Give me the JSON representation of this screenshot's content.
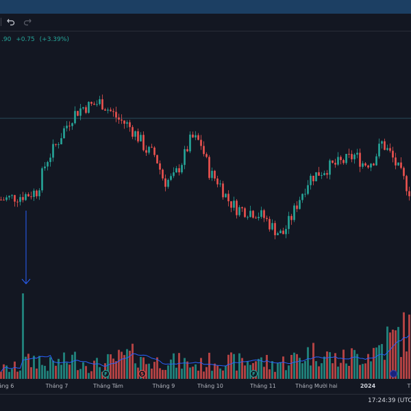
{
  "legend": {
    "price_fragment": ".90",
    "change": "+0.75",
    "change_pct": "(+3.39%)"
  },
  "toolbar": {
    "undo_icon": "undo-icon",
    "redo_icon": "redo-icon"
  },
  "time_axis": {
    "labels": [
      "áng 6",
      "Tháng 7",
      "Tháng Tám",
      "Tháng 9",
      "Tháng 10",
      "Tháng 11",
      "Tháng Mười hai",
      "2024",
      "T"
    ]
  },
  "events": {
    "f1": "F",
    "s1": "S",
    "f2": "F"
  },
  "status": {
    "time": "17:24:39 (UTC+"
  },
  "colors": {
    "up": "#26a69a",
    "down": "#ef5350",
    "ma_line": "#2962ff",
    "arrow": "#2962ff"
  },
  "chart_data": {
    "type": "candlestick",
    "x_labels": [
      "áng 6",
      "Tháng 7",
      "Tháng Tám",
      "Tháng 9",
      "Tháng 10",
      "Tháng 11",
      "Tháng Mười hai",
      "2024"
    ],
    "close_path": [
      0.4,
      0.41,
      0.42,
      0.43,
      0.45,
      0.62,
      0.7,
      0.8,
      0.88,
      0.92,
      0.93,
      0.95,
      0.9,
      0.85,
      0.82,
      0.76,
      0.68,
      0.65,
      0.5,
      0.52,
      0.62,
      0.75,
      0.72,
      0.55,
      0.5,
      0.4,
      0.35,
      0.34,
      0.33,
      0.3,
      0.24,
      0.2,
      0.3,
      0.42,
      0.52,
      0.55,
      0.58,
      0.6,
      0.62,
      0.65,
      0.6,
      0.62,
      0.72,
      0.65,
      0.55,
      0.45
    ],
    "volume_spikes": [
      8,
      12,
      24,
      35
    ],
    "volume_level": [
      0.18,
      0.18,
      0.2,
      0.3,
      0.35,
      0.25,
      0.28,
      0.3,
      0.35,
      0.3,
      0.25,
      0.25,
      0.3,
      0.35,
      0.4,
      0.45,
      0.3,
      0.3,
      0.35,
      0.3,
      0.3,
      0.25,
      0.25,
      0.3,
      0.35,
      0.3,
      0.3,
      0.3,
      0.35,
      0.3,
      0.25,
      0.3,
      0.35,
      0.4,
      0.45,
      0.5,
      0.4,
      0.35,
      0.35,
      0.4,
      0.45,
      0.5,
      0.6,
      0.7,
      0.8,
      0.85
    ]
  }
}
